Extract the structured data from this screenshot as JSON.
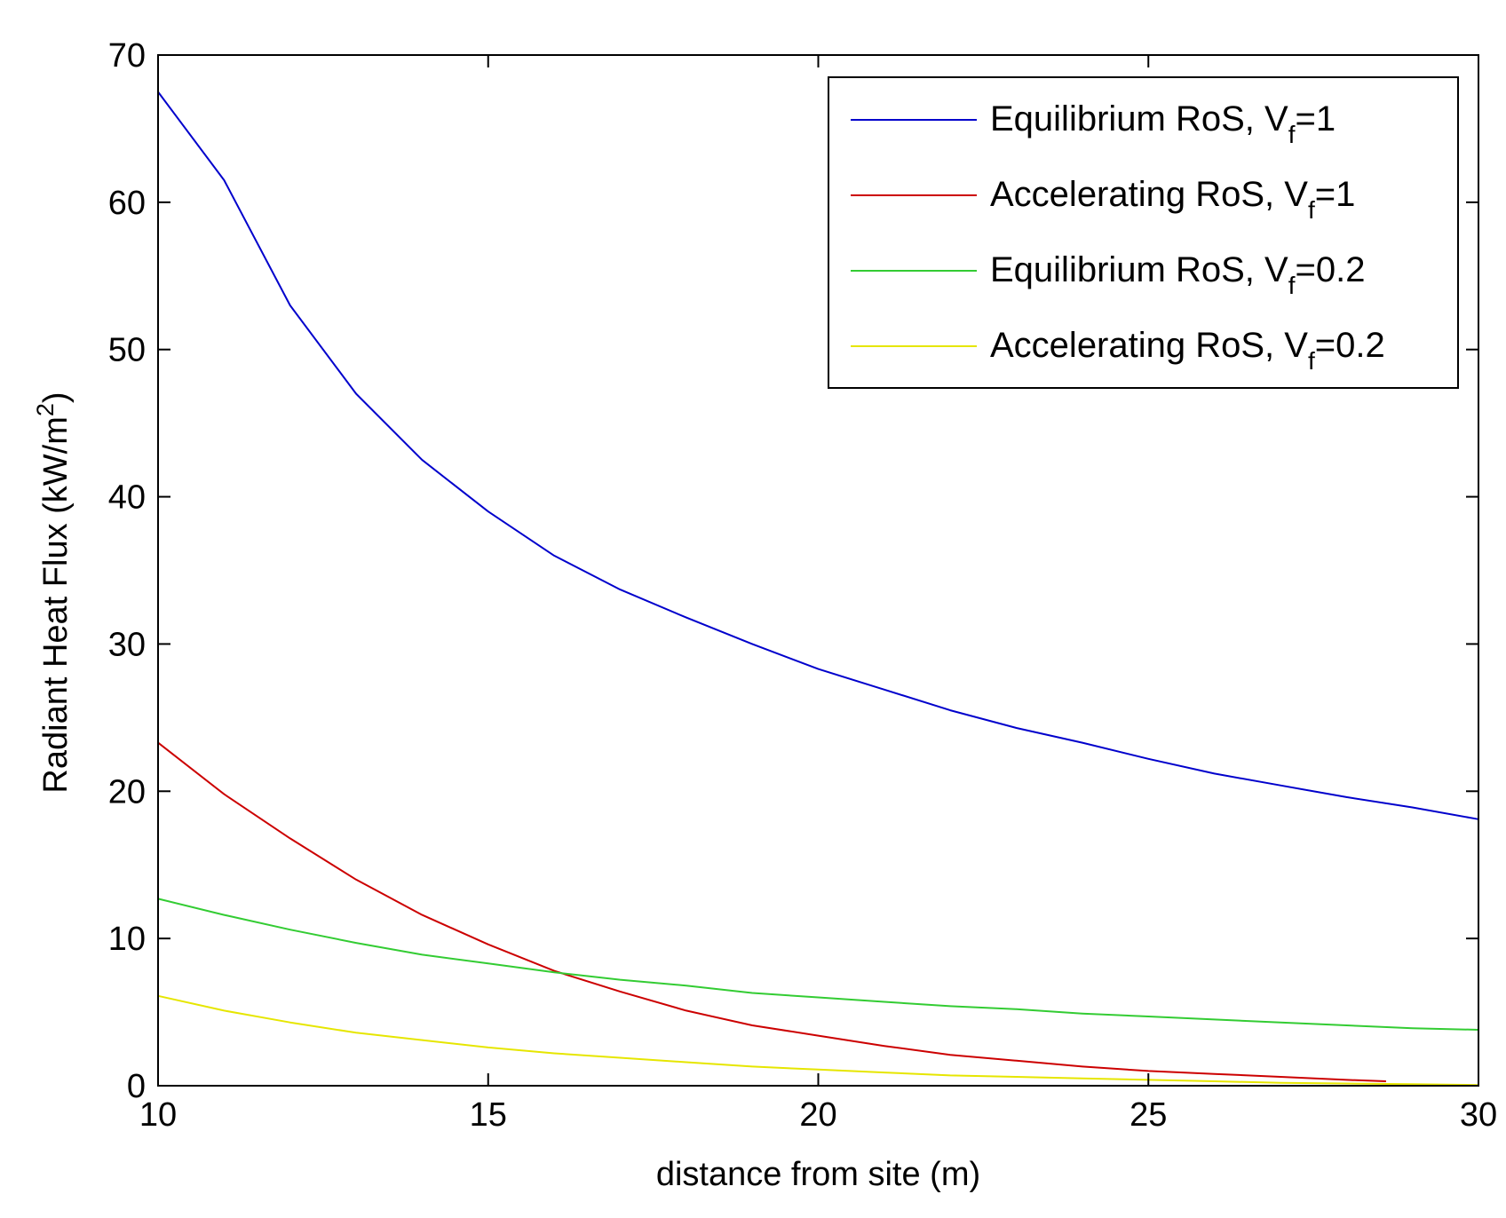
{
  "chart_data": {
    "type": "line",
    "title": "",
    "xlabel": "distance from site (m)",
    "ylabel": "Radiant Heat Flux (kW/m",
    "ylabel_superscript": "2",
    "ylabel_suffix": ")",
    "xlim": [
      10,
      30
    ],
    "ylim": [
      0,
      70
    ],
    "xticks": [
      10,
      15,
      20,
      25,
      30
    ],
    "yticks": [
      0,
      10,
      20,
      30,
      40,
      50,
      60,
      70
    ],
    "grid": false,
    "legend_position": "top-right",
    "series": [
      {
        "name": "Equilibrium RoS, V_f=1",
        "legend": {
          "prefix": "Equilibrium RoS, V",
          "subscript": "f",
          "suffix": "=1"
        },
        "color": "#0000cc",
        "points": [
          [
            10,
            67.5
          ],
          [
            11,
            61.5
          ],
          [
            12,
            53
          ],
          [
            13,
            47
          ],
          [
            14,
            42.5
          ],
          [
            15,
            39
          ],
          [
            16,
            36
          ],
          [
            17,
            33.7
          ],
          [
            18,
            31.8
          ],
          [
            19,
            30
          ],
          [
            20,
            28.3
          ],
          [
            21,
            26.9
          ],
          [
            22,
            25.5
          ],
          [
            23,
            24.3
          ],
          [
            24,
            23.3
          ],
          [
            25,
            22.2
          ],
          [
            26,
            21.2
          ],
          [
            27,
            20.4
          ],
          [
            28,
            19.6
          ],
          [
            29,
            18.9
          ],
          [
            30,
            18.1
          ]
        ]
      },
      {
        "name": "Accelerating RoS, V_f=1",
        "legend": {
          "prefix": "Accelerating RoS, V",
          "subscript": "f",
          "suffix": "=1"
        },
        "color": "#cc0000",
        "points": [
          [
            10,
            23.3
          ],
          [
            11,
            19.8
          ],
          [
            12,
            16.8
          ],
          [
            13,
            14
          ],
          [
            14,
            11.6
          ],
          [
            15,
            9.6
          ],
          [
            16,
            7.8
          ],
          [
            17,
            6.4
          ],
          [
            18,
            5.1
          ],
          [
            19,
            4.1
          ],
          [
            20,
            3.4
          ],
          [
            21,
            2.7
          ],
          [
            22,
            2.1
          ],
          [
            23,
            1.7
          ],
          [
            24,
            1.3
          ],
          [
            25,
            1
          ],
          [
            26,
            0.8
          ],
          [
            27,
            0.6
          ],
          [
            28,
            0.4
          ],
          [
            28.6,
            0.3
          ]
        ]
      },
      {
        "name": "Equilibrium RoS, V_f=0.2",
        "legend": {
          "prefix": "Equilibrium RoS, V",
          "subscript": "f",
          "suffix": "=0.2"
        },
        "color": "#33cc33",
        "points": [
          [
            10,
            12.7
          ],
          [
            11,
            11.6
          ],
          [
            12,
            10.6
          ],
          [
            13,
            9.7
          ],
          [
            14,
            8.9
          ],
          [
            15,
            8.3
          ],
          [
            16,
            7.7
          ],
          [
            17,
            7.2
          ],
          [
            18,
            6.8
          ],
          [
            19,
            6.3
          ],
          [
            20,
            6
          ],
          [
            21,
            5.7
          ],
          [
            22,
            5.4
          ],
          [
            23,
            5.2
          ],
          [
            24,
            4.9
          ],
          [
            25,
            4.7
          ],
          [
            26,
            4.5
          ],
          [
            27,
            4.3
          ],
          [
            28,
            4.1
          ],
          [
            29,
            3.9
          ],
          [
            30,
            3.8
          ]
        ]
      },
      {
        "name": "Accelerating RoS, V_f=0.2",
        "legend": {
          "prefix": "Accelerating RoS, V",
          "subscript": "f",
          "suffix": "=0.2"
        },
        "color": "#e6e600",
        "points": [
          [
            10,
            6.1
          ],
          [
            11,
            5.1
          ],
          [
            12,
            4.3
          ],
          [
            13,
            3.6
          ],
          [
            14,
            3.1
          ],
          [
            15,
            2.6
          ],
          [
            16,
            2.2
          ],
          [
            17,
            1.9
          ],
          [
            18,
            1.6
          ],
          [
            19,
            1.3
          ],
          [
            20,
            1.1
          ],
          [
            21,
            0.9
          ],
          [
            22,
            0.7
          ],
          [
            23,
            0.6
          ],
          [
            24,
            0.5
          ],
          [
            25,
            0.4
          ],
          [
            26,
            0.3
          ],
          [
            27,
            0.2
          ],
          [
            28,
            0.15
          ],
          [
            29,
            0.1
          ],
          [
            30,
            0.05
          ]
        ]
      }
    ]
  }
}
